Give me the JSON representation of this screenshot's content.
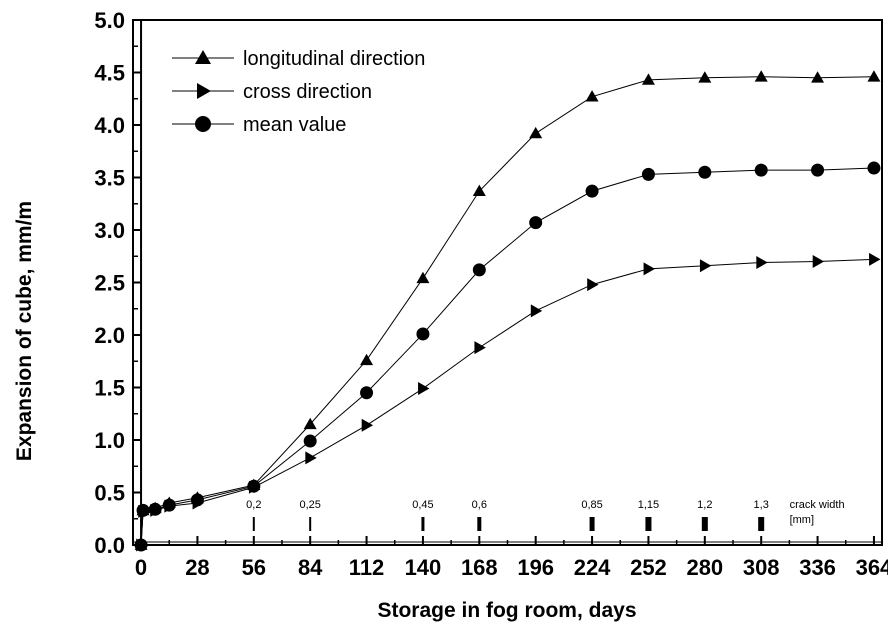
{
  "chart_data": {
    "type": "line",
    "xlabel": "Storage in fog room, days",
    "ylabel": "Expansion of cube, mm/m",
    "xlim": [
      -4,
      368
    ],
    "ylim": [
      0,
      5.0
    ],
    "x_ticks": [
      0,
      28,
      56,
      84,
      112,
      140,
      168,
      196,
      224,
      252,
      280,
      308,
      336,
      364
    ],
    "y_ticks": [
      0.0,
      0.5,
      1.0,
      1.5,
      2.0,
      2.5,
      3.0,
      3.5,
      4.0,
      4.5,
      5.0
    ],
    "y_tick_labels": [
      "0.0",
      "0.5",
      "1.0",
      "1.5",
      "2.0",
      "2.5",
      "3.0",
      "3.5",
      "4.0",
      "4.5",
      "5.0"
    ],
    "legend_position": "top-left",
    "series": [
      {
        "name": "longitudinal direction",
        "marker": "triangle-up",
        "x": [
          0,
          1,
          7,
          14,
          28,
          56,
          84,
          112,
          140,
          168,
          196,
          224,
          252,
          280,
          308,
          336,
          364
        ],
        "y": [
          0.0,
          0.33,
          0.35,
          0.4,
          0.45,
          0.57,
          1.15,
          1.76,
          2.54,
          3.37,
          3.92,
          4.27,
          4.43,
          4.45,
          4.46,
          4.45,
          4.46
        ]
      },
      {
        "name": "cross direction",
        "marker": "triangle-right",
        "x": [
          0,
          1,
          7,
          14,
          28,
          56,
          84,
          112,
          140,
          168,
          196,
          224,
          252,
          280,
          308,
          336,
          364
        ],
        "y": [
          0.0,
          0.32,
          0.33,
          0.37,
          0.4,
          0.55,
          0.83,
          1.14,
          1.49,
          1.88,
          2.23,
          2.48,
          2.63,
          2.66,
          2.69,
          2.7,
          2.72
        ]
      },
      {
        "name": "mean value",
        "marker": "circle",
        "x": [
          0,
          1,
          7,
          14,
          28,
          56,
          84,
          112,
          140,
          168,
          196,
          224,
          252,
          280,
          308,
          336,
          364
        ],
        "y": [
          0.0,
          0.33,
          0.34,
          0.38,
          0.43,
          0.56,
          0.99,
          1.45,
          2.01,
          2.62,
          3.07,
          3.37,
          3.53,
          3.55,
          3.57,
          3.57,
          3.59
        ]
      }
    ],
    "crack_width": {
      "title_line1": "crack width",
      "title_line2": "[mm]",
      "title_x": 336,
      "marks": [
        {
          "x": 56,
          "label": "0,2",
          "weight": 1
        },
        {
          "x": 84,
          "label": "0,25",
          "weight": 1
        },
        {
          "x": 140,
          "label": "0,45",
          "weight": 2
        },
        {
          "x": 168,
          "label": "0,6",
          "weight": 3
        },
        {
          "x": 224,
          "label": "0,85",
          "weight": 4
        },
        {
          "x": 252,
          "label": "1,15",
          "weight": 5
        },
        {
          "x": 280,
          "label": "1,2",
          "weight": 5
        },
        {
          "x": 308,
          "label": "1,3",
          "weight": 5
        }
      ]
    },
    "colors": {
      "line": "#000000",
      "background": "#ffffff"
    }
  }
}
